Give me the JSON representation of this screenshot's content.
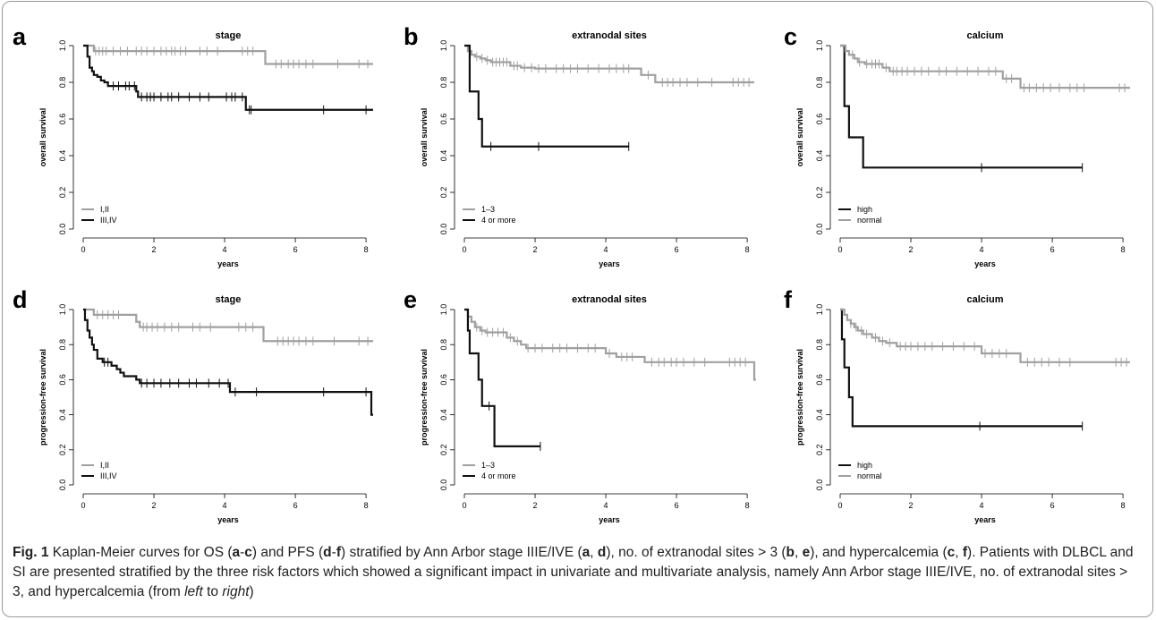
{
  "caption": {
    "label": "Fig. 1",
    "segments": [
      {
        "t": " Kaplan-Meier curves for OS ("
      },
      {
        "t": "a",
        "b": true
      },
      {
        "t": "-"
      },
      {
        "t": "c",
        "b": true
      },
      {
        "t": ") and PFS ("
      },
      {
        "t": "d",
        "b": true
      },
      {
        "t": "-"
      },
      {
        "t": "f",
        "b": true
      },
      {
        "t": ") stratified by Ann Arbor stage IIIE/IVE ("
      },
      {
        "t": "a",
        "b": true
      },
      {
        "t": ", "
      },
      {
        "t": "d",
        "b": true
      },
      {
        "t": "), no. of extranodal sites > 3 ("
      },
      {
        "t": "b",
        "b": true
      },
      {
        "t": ", "
      },
      {
        "t": "e",
        "b": true
      },
      {
        "t": "), and hypercalcemia ("
      },
      {
        "t": "c",
        "b": true
      },
      {
        "t": ", "
      },
      {
        "t": "f",
        "b": true
      },
      {
        "t": "). Patients with DLBCL and SI are presented stratified by the three risk factors which showed a significant impact in univariate and multivariate analysis, namely Ann Arbor stage IIIE/IVE, no. of extranodal sites > 3, and hypercalcemia (from "
      },
      {
        "t": "left",
        "i": true
      },
      {
        "t": " to "
      },
      {
        "t": "right",
        "i": true
      },
      {
        "t": ")"
      }
    ]
  },
  "colors": {
    "group_gray": "#a0a0a0",
    "group_black": "#111111"
  },
  "chart_data": [
    {
      "panel": "a",
      "type": "line",
      "title": "stage",
      "xlabel": "years",
      "ylabel": "overall survival",
      "xlim": [
        0,
        8.2
      ],
      "ylim": [
        0,
        1
      ],
      "xticks": [
        "0",
        "2",
        "4",
        "6",
        "8"
      ],
      "yticks": [
        "0.0",
        "0.2",
        "0.4",
        "0.6",
        "0.8",
        "1.0"
      ],
      "legend": {
        "position": "bottom-left",
        "entries": [
          "I,II",
          "III,IV"
        ]
      },
      "series": [
        {
          "name": "I,II",
          "color": "gray",
          "steps": [
            [
              0,
              1.0
            ],
            [
              0.3,
              0.97
            ],
            [
              5.15,
              0.9
            ]
          ],
          "end": 8.2,
          "censors": [
            0.35,
            0.45,
            0.55,
            0.65,
            0.85,
            1.05,
            1.25,
            1.5,
            1.65,
            1.8,
            2.0,
            2.2,
            2.35,
            2.5,
            2.6,
            2.75,
            2.9,
            3.3,
            3.5,
            3.8,
            4.5,
            4.65,
            4.8,
            5.45,
            5.6,
            5.8,
            5.95,
            6.1,
            6.3,
            6.5,
            7.2,
            7.8,
            8.05
          ]
        },
        {
          "name": "III,IV",
          "color": "black",
          "steps": [
            [
              0,
              1.0
            ],
            [
              0.12,
              0.94
            ],
            [
              0.18,
              0.88
            ],
            [
              0.25,
              0.86
            ],
            [
              0.3,
              0.84
            ],
            [
              0.4,
              0.83
            ],
            [
              0.5,
              0.81
            ],
            [
              0.6,
              0.8
            ],
            [
              0.7,
              0.78
            ],
            [
              1.5,
              0.75
            ],
            [
              1.55,
              0.72
            ],
            [
              4.6,
              0.65
            ]
          ],
          "end": 8.2,
          "censors": [
            0.85,
            1.0,
            1.2,
            1.3,
            1.45,
            1.65,
            1.8,
            1.9,
            2.0,
            2.2,
            2.4,
            2.5,
            2.7,
            3.0,
            3.3,
            3.55,
            4.05,
            4.2,
            4.3,
            4.5,
            4.7,
            4.75,
            6.8,
            8.0
          ]
        }
      ]
    },
    {
      "panel": "b",
      "type": "line",
      "title": "extranodal sites",
      "xlabel": "years",
      "ylabel": "overall survival",
      "xlim": [
        0,
        8.2
      ],
      "ylim": [
        0,
        1
      ],
      "xticks": [
        "0",
        "2",
        "4",
        "6",
        "8"
      ],
      "yticks": [
        "0.0",
        "0.2",
        "0.4",
        "0.6",
        "0.8",
        "1.0"
      ],
      "legend": {
        "position": "bottom-left",
        "entries": [
          "1–3",
          "4 or more"
        ]
      },
      "series": [
        {
          "name": "1–3",
          "color": "gray",
          "steps": [
            [
              0,
              1.0
            ],
            [
              0.1,
              0.97
            ],
            [
              0.2,
              0.95
            ],
            [
              0.3,
              0.94
            ],
            [
              0.45,
              0.93
            ],
            [
              0.6,
              0.92
            ],
            [
              0.75,
              0.91
            ],
            [
              1.3,
              0.89
            ],
            [
              1.6,
              0.88
            ],
            [
              2.0,
              0.875
            ],
            [
              5.0,
              0.84
            ],
            [
              5.4,
              0.8
            ]
          ],
          "end": 8.2,
          "censors": [
            0.35,
            0.5,
            0.65,
            0.8,
            0.9,
            1.0,
            1.1,
            1.2,
            1.4,
            1.5,
            1.7,
            1.9,
            2.1,
            2.3,
            2.6,
            2.8,
            3.0,
            3.2,
            3.5,
            3.8,
            4.1,
            4.3,
            4.5,
            4.65,
            5.2,
            5.6,
            5.75,
            5.9,
            6.1,
            6.3,
            6.6,
            7.0,
            7.6,
            7.75,
            7.9,
            8.05
          ]
        },
        {
          "name": "4 or more",
          "color": "black",
          "steps": [
            [
              0,
              1.0
            ],
            [
              0.15,
              0.75
            ],
            [
              0.4,
              0.6
            ],
            [
              0.5,
              0.45
            ]
          ],
          "end": 4.65,
          "censors": [
            0.75,
            2.1,
            4.65
          ]
        }
      ]
    },
    {
      "panel": "c",
      "type": "line",
      "title": "calcium",
      "xlabel": "years",
      "ylabel": "overall survival",
      "xlim": [
        0,
        8.2
      ],
      "ylim": [
        0,
        1
      ],
      "xticks": [
        "0",
        "2",
        "4",
        "6",
        "8"
      ],
      "yticks": [
        "0.0",
        "0.2",
        "0.4",
        "0.6",
        "0.8",
        "1.0"
      ],
      "legend": {
        "position": "bottom-left",
        "entries": [
          "high",
          "normal"
        ]
      },
      "series": [
        {
          "name": "high",
          "color": "black",
          "steps": [
            [
              0,
              1.0
            ],
            [
              0.12,
              0.67
            ],
            [
              0.25,
              0.5
            ],
            [
              0.65,
              0.335
            ]
          ],
          "end": 6.85,
          "censors": [
            4.0,
            6.85
          ]
        },
        {
          "name": "normal",
          "color": "gray",
          "steps": [
            [
              0,
              1.0
            ],
            [
              0.15,
              0.97
            ],
            [
              0.25,
              0.95
            ],
            [
              0.4,
              0.93
            ],
            [
              0.5,
              0.91
            ],
            [
              0.7,
              0.9
            ],
            [
              1.2,
              0.88
            ],
            [
              1.4,
              0.86
            ],
            [
              4.6,
              0.82
            ],
            [
              5.1,
              0.77
            ]
          ],
          "end": 8.2,
          "censors": [
            0.35,
            0.55,
            0.75,
            0.9,
            1.0,
            1.1,
            1.3,
            1.5,
            1.6,
            1.75,
            1.9,
            2.1,
            2.3,
            2.5,
            2.8,
            3.0,
            3.3,
            3.6,
            3.9,
            4.2,
            4.4,
            4.7,
            4.85,
            5.2,
            5.35,
            5.55,
            5.75,
            5.95,
            6.2,
            6.5,
            6.7,
            6.9,
            7.9,
            8.05
          ]
        }
      ]
    },
    {
      "panel": "d",
      "type": "line",
      "title": "stage",
      "xlabel": "years",
      "ylabel": "progression-free survival",
      "xlim": [
        0,
        8.2
      ],
      "ylim": [
        0,
        1
      ],
      "xticks": [
        "0",
        "2",
        "4",
        "6",
        "8"
      ],
      "yticks": [
        "0.0",
        "0.2",
        "0.4",
        "0.6",
        "0.8",
        "1.0"
      ],
      "legend": {
        "position": "bottom-left",
        "entries": [
          "I,II",
          "III,IV"
        ]
      },
      "series": [
        {
          "name": "I,II",
          "color": "gray",
          "steps": [
            [
              0,
              1.0
            ],
            [
              0.3,
              0.97
            ],
            [
              1.5,
              0.93
            ],
            [
              1.6,
              0.9
            ],
            [
              5.1,
              0.82
            ]
          ],
          "end": 8.2,
          "censors": [
            0.4,
            0.55,
            0.7,
            0.85,
            1.0,
            1.7,
            1.8,
            1.95,
            2.1,
            2.3,
            2.5,
            2.7,
            3.1,
            3.3,
            3.6,
            4.4,
            4.6,
            4.8,
            5.5,
            5.65,
            5.8,
            5.95,
            6.1,
            6.3,
            6.5,
            7.1,
            7.8,
            8.05
          ]
        },
        {
          "name": "III,IV",
          "color": "black",
          "steps": [
            [
              0,
              1.0
            ],
            [
              0.05,
              0.94
            ],
            [
              0.12,
              0.88
            ],
            [
              0.18,
              0.84
            ],
            [
              0.25,
              0.8
            ],
            [
              0.3,
              0.77
            ],
            [
              0.4,
              0.72
            ],
            [
              0.55,
              0.7
            ],
            [
              0.8,
              0.68
            ],
            [
              0.95,
              0.66
            ],
            [
              1.05,
              0.64
            ],
            [
              1.15,
              0.62
            ],
            [
              1.5,
              0.6
            ],
            [
              1.6,
              0.58
            ],
            [
              4.15,
              0.53
            ],
            [
              8.15,
              0.4
            ]
          ],
          "end": 8.2,
          "censors": [
            0.6,
            0.7,
            1.65,
            1.8,
            2.0,
            2.2,
            2.45,
            2.7,
            3.0,
            3.2,
            3.55,
            3.85,
            4.1,
            4.3,
            4.9,
            6.8,
            8.0
          ]
        }
      ]
    },
    {
      "panel": "e",
      "type": "line",
      "title": "extranodal sites",
      "xlabel": "years",
      "ylabel": "progression-free survival",
      "xlim": [
        0,
        8.2
      ],
      "ylim": [
        0,
        1
      ],
      "xticks": [
        "0",
        "2",
        "4",
        "6",
        "8"
      ],
      "yticks": [
        "0.0",
        "0.2",
        "0.4",
        "0.6",
        "0.8",
        "1.0"
      ],
      "legend": {
        "position": "bottom-left",
        "entries": [
          "1–3",
          "4 or more"
        ]
      },
      "series": [
        {
          "name": "1–3",
          "color": "gray",
          "steps": [
            [
              0,
              1.0
            ],
            [
              0.1,
              0.96
            ],
            [
              0.2,
              0.93
            ],
            [
              0.3,
              0.9
            ],
            [
              0.45,
              0.88
            ],
            [
              0.6,
              0.87
            ],
            [
              1.2,
              0.84
            ],
            [
              1.4,
              0.82
            ],
            [
              1.6,
              0.8
            ],
            [
              1.75,
              0.78
            ],
            [
              4.0,
              0.75
            ],
            [
              4.3,
              0.73
            ],
            [
              5.1,
              0.7
            ],
            [
              8.2,
              0.6
            ]
          ],
          "end": 8.25,
          "censors": [
            0.35,
            0.5,
            0.65,
            0.8,
            0.95,
            1.1,
            1.3,
            1.5,
            1.8,
            2.0,
            2.2,
            2.5,
            2.7,
            2.9,
            3.2,
            3.5,
            3.7,
            4.1,
            4.45,
            4.6,
            4.75,
            5.3,
            5.5,
            5.65,
            5.85,
            6.0,
            6.2,
            6.5,
            6.8,
            7.5,
            7.65,
            7.8,
            7.95
          ]
        },
        {
          "name": "4 or more",
          "color": "black",
          "steps": [
            [
              0,
              1.0
            ],
            [
              0.1,
              0.88
            ],
            [
              0.15,
              0.75
            ],
            [
              0.4,
              0.6
            ],
            [
              0.5,
              0.45
            ],
            [
              0.85,
              0.22
            ]
          ],
          "end": 2.15,
          "censors": [
            0.7,
            2.15
          ]
        }
      ]
    },
    {
      "panel": "f",
      "type": "line",
      "title": "calcium",
      "xlabel": "years",
      "ylabel": "progression-free survival",
      "xlim": [
        0,
        8.2
      ],
      "ylim": [
        0,
        1
      ],
      "xticks": [
        "0",
        "2",
        "4",
        "6",
        "8"
      ],
      "yticks": [
        "0.0",
        "0.2",
        "0.4",
        "0.6",
        "0.8",
        "1.0"
      ],
      "legend": {
        "position": "bottom-left",
        "entries": [
          "high",
          "normal"
        ]
      },
      "series": [
        {
          "name": "high",
          "color": "black",
          "steps": [
            [
              0,
              1.0
            ],
            [
              0.05,
              0.83
            ],
            [
              0.12,
              0.67
            ],
            [
              0.25,
              0.5
            ],
            [
              0.35,
              0.335
            ]
          ],
          "end": 6.85,
          "censors": [
            3.95,
            6.85
          ]
        },
        {
          "name": "normal",
          "color": "gray",
          "steps": [
            [
              0,
              1.0
            ],
            [
              0.12,
              0.97
            ],
            [
              0.2,
              0.94
            ],
            [
              0.3,
              0.92
            ],
            [
              0.4,
              0.9
            ],
            [
              0.5,
              0.88
            ],
            [
              0.65,
              0.86
            ],
            [
              0.9,
              0.84
            ],
            [
              1.1,
              0.82
            ],
            [
              1.3,
              0.81
            ],
            [
              1.6,
              0.79
            ],
            [
              4.0,
              0.75
            ],
            [
              5.1,
              0.7
            ]
          ],
          "end": 8.2,
          "censors": [
            0.3,
            0.45,
            0.6,
            0.75,
            1.0,
            1.2,
            1.4,
            1.7,
            1.85,
            2.0,
            2.2,
            2.4,
            2.6,
            2.9,
            3.2,
            3.5,
            3.8,
            4.1,
            4.3,
            4.5,
            4.7,
            5.3,
            5.5,
            5.7,
            5.9,
            6.2,
            6.5,
            7.8,
            7.95,
            8.1
          ]
        }
      ]
    }
  ]
}
